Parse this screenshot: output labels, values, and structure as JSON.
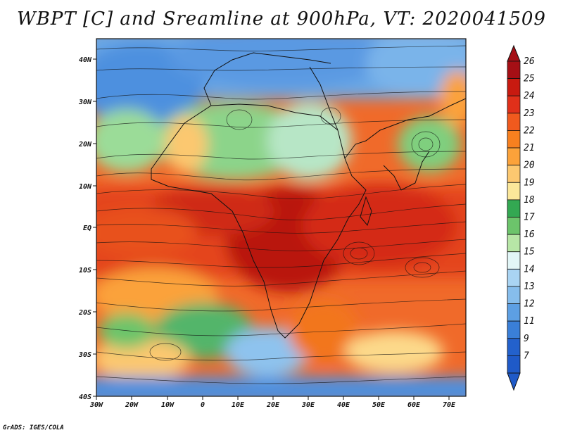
{
  "title": "WBPT [C] and Sreamline at 900hPa, VT: 2020041509",
  "credit": "GrADS: IGES/COLA",
  "lat_labels": [
    "40N",
    "30N",
    "20N",
    "10N",
    "EQ",
    "10S",
    "20S",
    "30S",
    "40S"
  ],
  "lon_labels": [
    "30W",
    "20W",
    "10W",
    "0",
    "10E",
    "20E",
    "30E",
    "40E",
    "50E",
    "60E",
    "70E"
  ],
  "colorbar": {
    "levels": [
      "26",
      "25",
      "24",
      "23",
      "22",
      "21",
      "20",
      "19",
      "18",
      "17",
      "16",
      "15",
      "14",
      "13",
      "12",
      "11",
      "9",
      "7"
    ],
    "colors": [
      "#a50f15",
      "#c81a10",
      "#e0301a",
      "#f05a1e",
      "#f7801f",
      "#fba23a",
      "#fcc870",
      "#fbe79a",
      "#33a852",
      "#6cc46b",
      "#b7e6a6",
      "#e2f6f7",
      "#a9d4f3",
      "#86bdec",
      "#5d9fe3",
      "#3a7fd8",
      "#2361cc",
      "#1f5ac8"
    ]
  }
}
